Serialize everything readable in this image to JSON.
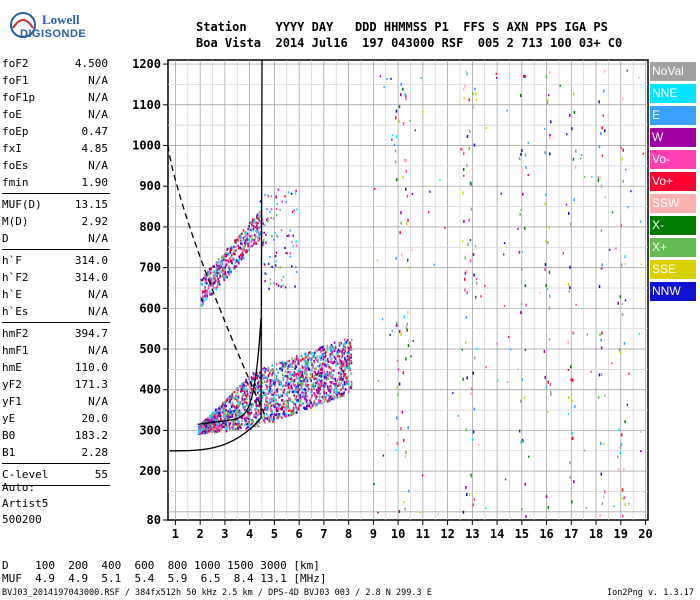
{
  "logo": {
    "line1": "Lowell",
    "line2": "DIGISONDE"
  },
  "header": {
    "labels": "Station    YYYY DAY   DDD HHMMSS P1  FFS S AXN PPS IGA PS",
    "values": "Boa Vista  2014 Jul16  197 043000 RSF  005 2 713 100 03+ C0"
  },
  "params": {
    "group1": [
      {
        "label": "foF2",
        "value": "4.500"
      },
      {
        "label": "foF1",
        "value": "N/A"
      },
      {
        "label": "foF1p",
        "value": "N/A"
      },
      {
        "label": "foE",
        "value": "N/A"
      },
      {
        "label": "foEp",
        "value": "0.47"
      },
      {
        "label": "fxI",
        "value": "4.85"
      },
      {
        "label": "foEs",
        "value": "N/A"
      },
      {
        "label": "fmin",
        "value": "1.90"
      }
    ],
    "group2": [
      {
        "label": "MUF(D)",
        "value": "13.15"
      },
      {
        "label": "M(D)",
        "value": "2.92"
      },
      {
        "label": "D",
        "value": "N/A"
      }
    ],
    "group3": [
      {
        "label": "h`F",
        "value": "314.0"
      },
      {
        "label": "h`F2",
        "value": "314.0"
      },
      {
        "label": "h`E",
        "value": "N/A"
      },
      {
        "label": "h`Es",
        "value": "N/A"
      }
    ],
    "group4": [
      {
        "label": "hmF2",
        "value": "394.7"
      },
      {
        "label": "hmF1",
        "value": "N/A"
      },
      {
        "label": "hmE",
        "value": "110.0"
      },
      {
        "label": "yF2",
        "value": "171.3"
      },
      {
        "label": "yF1",
        "value": "N/A"
      },
      {
        "label": "yE",
        "value": "20.0"
      },
      {
        "label": "B0",
        "value": "183.2"
      },
      {
        "label": "B1",
        "value": "2.28"
      }
    ],
    "group5": [
      {
        "label": "C-level",
        "value": "55"
      }
    ]
  },
  "auto": {
    "line1": "Auto:",
    "line2": "Artist5",
    "line3": "500200"
  },
  "legend": [
    {
      "name": "NoVal",
      "color": "#a0a0a0"
    },
    {
      "name": "NNE",
      "color": "#00e5ff"
    },
    {
      "name": "E",
      "color": "#3aa0ff"
    },
    {
      "name": "W",
      "color": "#a000a0"
    },
    {
      "name": "Vo-",
      "color": "#ff40b0"
    },
    {
      "name": "Vo+",
      "color": "#ff0030"
    },
    {
      "name": "SSW",
      "color": "#ffb0b0"
    },
    {
      "name": "X-",
      "color": "#007a00"
    },
    {
      "name": "X+",
      "color": "#66bb55"
    },
    {
      "name": "SSE",
      "color": "#d8d000"
    },
    {
      "name": "NNW",
      "color": "#1010d0"
    }
  ],
  "muf": {
    "row_d": "D    100  200  400  600  800 1000 1500 3000 [km]",
    "row_muf": "MUF  4.9  4.9  5.1  5.4  5.9  6.5  8.4 13.1 [MHz]"
  },
  "footer": "BVJ03_2014197043000.RSF / 384fx512h 50 kHz 2.5 km / DPS-4D BVJ03 003 / 2.8 N 299.3 E",
  "version": "Ion2Png v. 1.3.17",
  "chart_data": {
    "type": "scatter",
    "title": "",
    "xlabel": "",
    "ylabel": "",
    "xlim": [
      0.7,
      20.1
    ],
    "ylim": [
      80,
      1210
    ],
    "x_ticks": [
      1,
      2,
      3,
      4,
      5,
      6,
      7,
      8,
      9,
      10,
      11,
      12,
      13,
      14,
      15,
      16,
      17,
      18,
      19,
      20
    ],
    "y_ticks": [
      80,
      200,
      300,
      400,
      500,
      600,
      700,
      800,
      900,
      1000,
      1100,
      1200
    ],
    "grid": true,
    "series": [
      {
        "color": "#a000a0",
        "clusters": [
          {
            "x_range": [
              1.9,
              8.1
            ],
            "y_range": [
              300,
              500
            ],
            "density": "high"
          },
          {
            "x_range": [
              2.0,
              4.4
            ],
            "y_range": [
              640,
              860
            ],
            "density": "medium"
          },
          {
            "x_range": [
              4.5,
              6.0
            ],
            "y_range": [
              650,
              900
            ],
            "density": "low"
          }
        ]
      }
    ],
    "vertical_line_x": 4.5,
    "sparse_columns": [
      10,
      10.3,
      12.7,
      13,
      15,
      16,
      17,
      18.2,
      19
    ]
  }
}
